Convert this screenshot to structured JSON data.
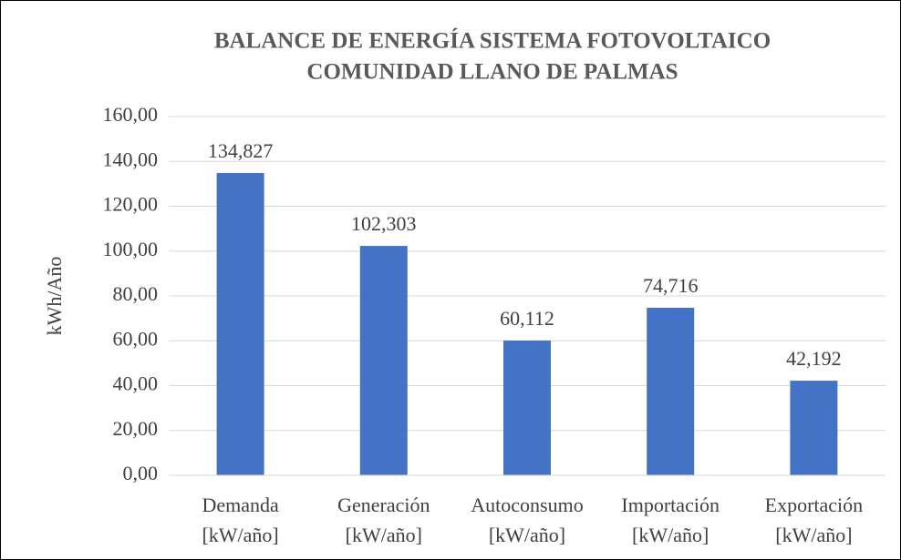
{
  "chart_data": {
    "type": "bar",
    "title": [
      "BALANCE DE ENERGÍA SISTEMA FOTOVOLTAICO",
      "COMUNIDAD LLANO DE PALMAS"
    ],
    "y_label": "kWh/Año",
    "categories": [
      "Demanda [kW/año]",
      "Generación [kW/año]",
      "Autoconsumo [kW/año]",
      "Importación [kW/año]",
      "Exportación [kW/año]"
    ],
    "values": [
      134.827,
      102.303,
      60.112,
      74.716,
      42.192
    ],
    "value_labels": [
      "134,827",
      "102,303",
      "60,112",
      "74,716",
      "42,192"
    ],
    "color": "#4472c4",
    "ylim": [
      0,
      160
    ],
    "yticks": [
      {
        "value": 0,
        "label": "0,00"
      },
      {
        "value": 20,
        "label": "20,00"
      },
      {
        "value": 40,
        "label": "40,00"
      },
      {
        "value": 60,
        "label": "60,00"
      },
      {
        "value": 80,
        "label": "80,00"
      },
      {
        "value": 100,
        "label": "100,00"
      },
      {
        "value": 120,
        "label": "120,00"
      },
      {
        "value": 140,
        "label": "140,00"
      },
      {
        "value": 160,
        "label": "160,00"
      }
    ],
    "grid": true
  }
}
